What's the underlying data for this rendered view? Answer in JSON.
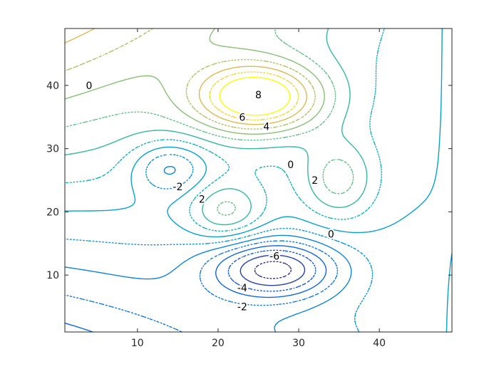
{
  "chart_data": {
    "type": "contour",
    "title": "",
    "xlabel": "",
    "ylabel": "",
    "xlim": [
      1,
      49
    ],
    "ylim": [
      1,
      49
    ],
    "x_ticks": [
      10,
      20,
      30,
      40
    ],
    "y_ticks": [
      10,
      20,
      30,
      40
    ],
    "grid": false,
    "legend": "none",
    "levels": [
      -7,
      -6,
      -5,
      -4,
      -3,
      -2,
      -1,
      0,
      1,
      2,
      3,
      4,
      5,
      6,
      7,
      8
    ],
    "level_style": {
      "odd": "dotted",
      "even": "solid"
    },
    "colormap": "parula",
    "features": [
      {
        "kind": "peak",
        "x": 25,
        "y": 38,
        "value": 8.2
      },
      {
        "kind": "peak",
        "x": 35,
        "y": 25,
        "value": 3.2
      },
      {
        "kind": "peak",
        "x": 21,
        "y": 20,
        "value": 3.3
      },
      {
        "kind": "trough",
        "x": 27,
        "y": 11,
        "value": -6.6
      },
      {
        "kind": "trough",
        "x": 14,
        "y": 27,
        "value": -3.2
      }
    ],
    "contour_labels": [
      {
        "text": "0",
        "x": 4,
        "y": 40
      },
      {
        "text": "8",
        "x": 25,
        "y": 38.5
      },
      {
        "text": "6",
        "x": 23,
        "y": 35
      },
      {
        "text": "4",
        "x": 26,
        "y": 33.5
      },
      {
        "text": "0",
        "x": 29,
        "y": 27.5
      },
      {
        "text": "2",
        "x": 32,
        "y": 25
      },
      {
        "text": "-2",
        "x": 15,
        "y": 24
      },
      {
        "text": "2",
        "x": 18,
        "y": 22
      },
      {
        "text": "0",
        "x": 34,
        "y": 16.5
      },
      {
        "text": "-6",
        "x": 27,
        "y": 13
      },
      {
        "text": "-4",
        "x": 23,
        "y": 8
      },
      {
        "text": "-2",
        "x": 23,
        "y": 5
      }
    ]
  }
}
